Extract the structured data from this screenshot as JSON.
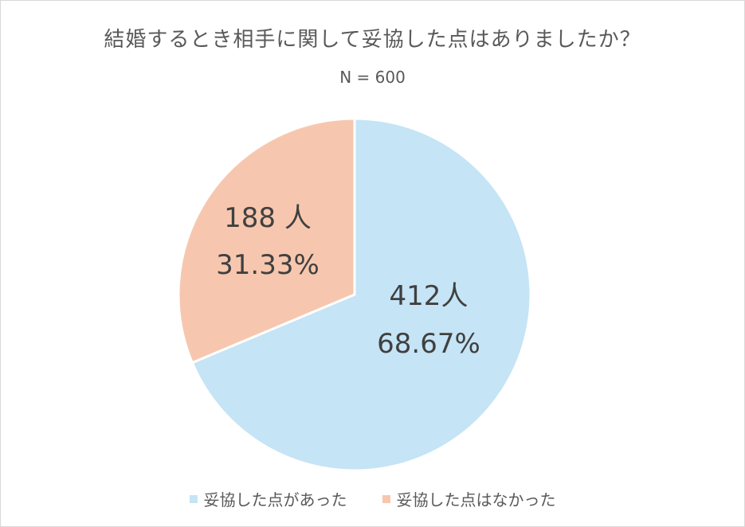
{
  "chart_data": {
    "type": "pie",
    "title": "結婚するとき相手に関して妥協した点はありましたか？",
    "subtitle": "N = 600",
    "categories": [
      "妥協した点があった",
      "妥協した点はなかった"
    ],
    "values": [
      412,
      188
    ],
    "count_labels": [
      "412人",
      "188 人"
    ],
    "percent_labels": [
      "68.67%",
      "31.33%"
    ],
    "colors": [
      "#c5e4f5",
      "#f6c7ae"
    ],
    "legend_position": "bottom"
  }
}
